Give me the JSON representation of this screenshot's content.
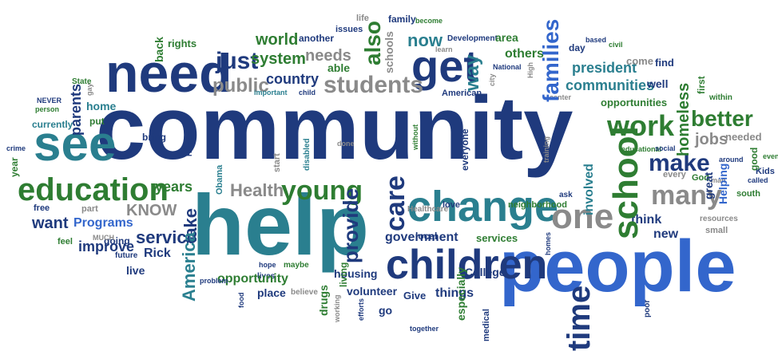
{
  "colors": {
    "navy": "#1f3a7d",
    "blue": "#3366cc",
    "teal": "#2a7f8f",
    "green": "#2e7d32",
    "gray": "#8a8a8a",
    "palette": [
      "#1f3a7d",
      "#3366cc",
      "#2a7f8f",
      "#2e7d32",
      "#8a8a8a"
    ]
  },
  "word_cloud": {
    "words": [
      {
        "text": "community"
      },
      {
        "text": "people"
      },
      {
        "text": "help"
      },
      {
        "text": "need"
      },
      {
        "text": "see"
      },
      {
        "text": "children"
      },
      {
        "text": "change"
      },
      {
        "text": "get"
      },
      {
        "text": "education"
      },
      {
        "text": "school"
      },
      {
        "text": "one"
      },
      {
        "text": "work"
      },
      {
        "text": "make"
      },
      {
        "text": "many"
      },
      {
        "text": "time"
      },
      {
        "text": "care"
      },
      {
        "text": "provide"
      },
      {
        "text": "students"
      },
      {
        "text": "young"
      },
      {
        "text": "just"
      },
      {
        "text": "families"
      },
      {
        "text": "also"
      },
      {
        "text": "now"
      },
      {
        "text": "way"
      },
      {
        "text": "better"
      },
      {
        "text": "world"
      },
      {
        "text": "system"
      },
      {
        "text": "country"
      },
      {
        "text": "public"
      },
      {
        "text": "needs"
      },
      {
        "text": "service"
      },
      {
        "text": "Health"
      },
      {
        "text": "KNOW"
      },
      {
        "text": "take"
      },
      {
        "text": "years"
      },
      {
        "text": "want"
      },
      {
        "text": "Programs"
      },
      {
        "text": "America"
      },
      {
        "text": "homeless"
      },
      {
        "text": "jobs"
      },
      {
        "text": "communities"
      },
      {
        "text": "president"
      },
      {
        "text": "others"
      },
      {
        "text": "able"
      },
      {
        "text": "another"
      },
      {
        "text": "rights"
      },
      {
        "text": "back"
      },
      {
        "text": "issues"
      },
      {
        "text": "schools"
      },
      {
        "text": "family"
      },
      {
        "text": "life"
      },
      {
        "text": "become"
      },
      {
        "text": "learn"
      },
      {
        "text": "Development"
      },
      {
        "text": "area"
      },
      {
        "text": "day"
      },
      {
        "text": "based"
      },
      {
        "text": "civil"
      },
      {
        "text": "National"
      },
      {
        "text": "High"
      },
      {
        "text": "come"
      },
      {
        "text": "find"
      },
      {
        "text": "well"
      },
      {
        "text": "first"
      },
      {
        "text": "within"
      },
      {
        "text": "opportunities"
      },
      {
        "text": "State"
      },
      {
        "text": "gay"
      },
      {
        "text": "NEVER"
      },
      {
        "text": "person"
      },
      {
        "text": "parents"
      },
      {
        "text": "home"
      },
      {
        "text": "put"
      },
      {
        "text": "currently"
      },
      {
        "text": "important"
      },
      {
        "text": "child"
      },
      {
        "text": "city"
      },
      {
        "text": "American"
      },
      {
        "text": "center"
      },
      {
        "text": "crime"
      },
      {
        "text": "bring"
      },
      {
        "text": "Human"
      },
      {
        "text": "start"
      },
      {
        "text": "disabled"
      },
      {
        "text": "done"
      },
      {
        "text": "without"
      },
      {
        "text": "everyone"
      },
      {
        "text": "training"
      },
      {
        "text": "educational"
      },
      {
        "text": "social"
      },
      {
        "text": "needed"
      },
      {
        "text": "good"
      },
      {
        "text": "even"
      },
      {
        "text": "year"
      },
      {
        "text": "around"
      },
      {
        "text": "called"
      },
      {
        "text": "Kids"
      },
      {
        "text": "south"
      },
      {
        "text": "God"
      },
      {
        "text": "man"
      },
      {
        "text": "Helping"
      },
      {
        "text": "great"
      },
      {
        "text": "every"
      },
      {
        "text": "involved"
      },
      {
        "text": "ask"
      },
      {
        "text": "think"
      },
      {
        "text": "new"
      },
      {
        "text": "resources"
      },
      {
        "text": "small"
      },
      {
        "text": "poor"
      },
      {
        "text": "homes"
      },
      {
        "text": "medical"
      },
      {
        "text": "together"
      },
      {
        "text": "especially"
      },
      {
        "text": "go"
      },
      {
        "text": "Give"
      },
      {
        "text": "things"
      },
      {
        "text": "College"
      },
      {
        "text": "services"
      },
      {
        "text": "local"
      },
      {
        "text": "government"
      },
      {
        "text": "love"
      },
      {
        "text": "neighborhood"
      },
      {
        "text": "Healthcare"
      },
      {
        "text": "living"
      },
      {
        "text": "housing"
      },
      {
        "text": "volunteer"
      },
      {
        "text": "working"
      },
      {
        "text": "efforts"
      },
      {
        "text": "drugs"
      },
      {
        "text": "place"
      },
      {
        "text": "believe"
      },
      {
        "text": "hope"
      },
      {
        "text": "maybe"
      },
      {
        "text": "lives"
      },
      {
        "text": "food"
      },
      {
        "text": "opportunity"
      },
      {
        "text": "problem"
      },
      {
        "text": "live"
      },
      {
        "text": "Rick"
      },
      {
        "text": "future"
      },
      {
        "text": "going"
      },
      {
        "text": "improve"
      },
      {
        "text": "MUCH"
      },
      {
        "text": "feel"
      },
      {
        "text": "part"
      },
      {
        "text": "free"
      },
      {
        "text": "Obama"
      },
      {
        "text": "program"
      },
      {
        "text": "old"
      }
    ]
  }
}
